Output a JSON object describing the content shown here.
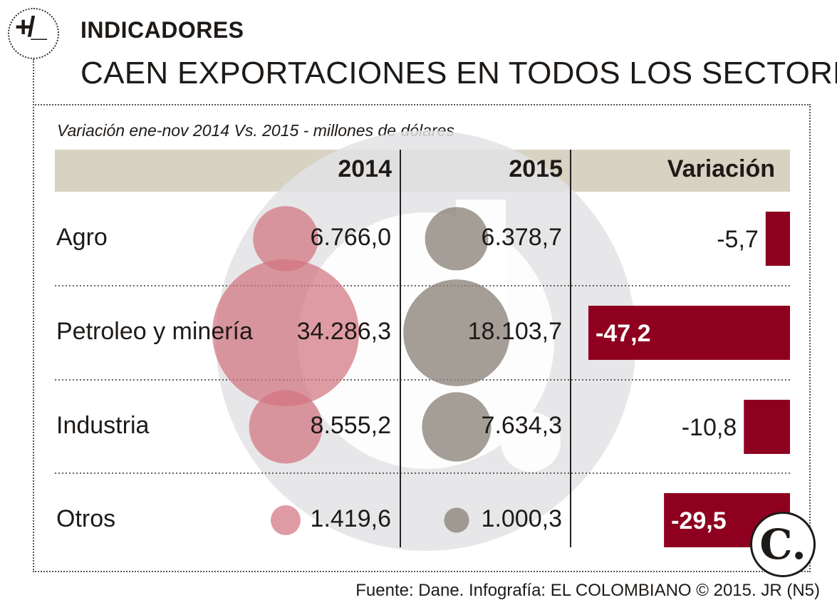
{
  "header": {
    "badge": "+/_",
    "kicker": "INDICADORES",
    "title": "CAEN EXPORTACIONES EN TODOS LOS SECTORES"
  },
  "chart_data": {
    "type": "table",
    "title": "CAEN EXPORTACIONES EN TODOS LOS SECTORES",
    "subtitle": "Variación ene-nov 2014 Vs. 2015 - millones de dólares",
    "columns": [
      "2014",
      "2015",
      "Variación"
    ],
    "rows": [
      {
        "sector": "Agro",
        "v2014": 6766.0,
        "v2015": 6378.7,
        "variation": -5.7,
        "v2014_label": "6.766,0",
        "v2015_label": "6.378,7",
        "variation_label": "-5,7"
      },
      {
        "sector": "Petroleo y minería",
        "v2014": 34286.3,
        "v2015": 18103.7,
        "variation": -47.2,
        "v2014_label": "34.286,3",
        "v2015_label": "18.103,7",
        "variation_label": "-47,2"
      },
      {
        "sector": "Industria",
        "v2014": 8555.2,
        "v2015": 7634.3,
        "variation": -10.8,
        "v2014_label": "8.555,2",
        "v2015_label": "7.634,3",
        "variation_label": "-10,8"
      },
      {
        "sector": "Otros",
        "v2014": 1419.6,
        "v2015": 1000.3,
        "variation": -29.5,
        "v2014_label": "1.419,6",
        "v2015_label": "1.000,3",
        "variation_label": "-29,5"
      }
    ],
    "colors": {
      "bubble_2014": "#d2747f",
      "bubble_2015": "#8b837a",
      "bar": "#8f0020",
      "header": "#d7d2c2"
    }
  },
  "footer": {
    "source": "Fuente: Dane. Infografía: EL COLOMBIANO © 2015. JR (N5)",
    "logo": "C."
  }
}
